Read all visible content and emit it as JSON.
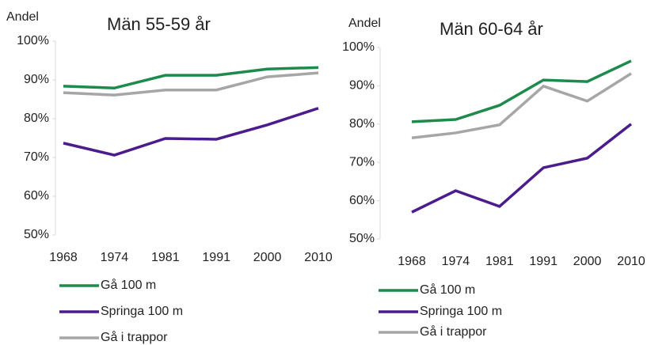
{
  "chart_data": [
    {
      "type": "line",
      "title": "Män 55-59 år",
      "y_label": "Andel",
      "categories": [
        "1968",
        "1974",
        "1981",
        "1991",
        "2000",
        "2010"
      ],
      "ylim": [
        50,
        100
      ],
      "yticks": [
        {
          "value": 50,
          "label": "50%"
        },
        {
          "value": 60,
          "label": "60%"
        },
        {
          "value": 70,
          "label": "70%"
        },
        {
          "value": 80,
          "label": "80%"
        },
        {
          "value": 90,
          "label": "90%"
        },
        {
          "value": 100,
          "label": "100%"
        }
      ],
      "series": [
        {
          "name": "Gå 100 m",
          "color": "#1e8a4c",
          "values": [
            88.4,
            87.9,
            91.2,
            91.2,
            92.8,
            93.2
          ]
        },
        {
          "name": "Springa 100 m",
          "color": "#4b1c8c",
          "values": [
            73.7,
            70.6,
            74.9,
            74.7,
            78.4,
            82.7
          ]
        },
        {
          "name": "Gå i trappor",
          "color": "#a6a6a6",
          "values": [
            86.7,
            86.1,
            87.4,
            87.4,
            90.8,
            91.8
          ]
        }
      ]
    },
    {
      "type": "line",
      "title": "Män 60-64 år",
      "y_label": "Andel",
      "categories": [
        "1968",
        "1974",
        "1981",
        "1991",
        "2000",
        "2010"
      ],
      "ylim": [
        50,
        100
      ],
      "yticks": [
        {
          "value": 50,
          "label": "50%"
        },
        {
          "value": 60,
          "label": "60%"
        },
        {
          "value": 70,
          "label": "70%"
        },
        {
          "value": 80,
          "label": "80%"
        },
        {
          "value": 90,
          "label": "90%"
        },
        {
          "value": 100,
          "label": "100%"
        }
      ],
      "series": [
        {
          "name": "Gå 100 m",
          "color": "#1e8a4c",
          "values": [
            80.6,
            81.2,
            84.9,
            91.5,
            91.1,
            96.5
          ]
        },
        {
          "name": "Springa 100 m",
          "color": "#4b1c8c",
          "values": [
            57,
            62.6,
            58.5,
            68.6,
            71.1,
            80
          ]
        },
        {
          "name": "Gå i trappor",
          "color": "#a6a6a6",
          "values": [
            76.4,
            77.7,
            79.8,
            89.9,
            86,
            93.2
          ]
        }
      ]
    }
  ]
}
